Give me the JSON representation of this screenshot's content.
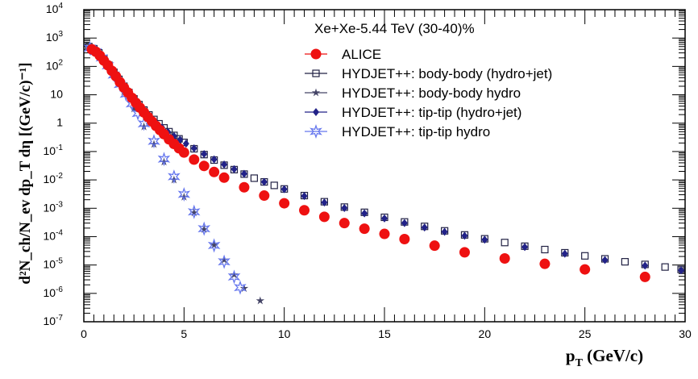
{
  "chart_data": {
    "type": "scatter",
    "title": "Xe+Xe-5.44 TeV (30-40)%",
    "xlabel": {
      "main": "p",
      "sub": "T",
      "rest": " (GeV/c)"
    },
    "ylabel": "d²N_ch/N_ev dp_T dη [(GeV/c)⁻¹]",
    "x_ticks": [
      "0",
      "5",
      "10",
      "15",
      "20",
      "25",
      "30"
    ],
    "y_ticks": [
      {
        "base": "10",
        "exp": "4"
      },
      {
        "base": "10",
        "exp": "3"
      },
      {
        "base": "10",
        "exp": "2"
      },
      {
        "base": "10",
        "exp": ""
      },
      {
        "base": "1",
        "exp": ""
      },
      {
        "base": "10",
        "exp": "-1"
      },
      {
        "base": "10",
        "exp": "-2"
      },
      {
        "base": "10",
        "exp": "-3"
      },
      {
        "base": "10",
        "exp": "-4"
      },
      {
        "base": "10",
        "exp": "-5"
      },
      {
        "base": "10",
        "exp": "-6"
      },
      {
        "base": "10",
        "exp": "-7"
      }
    ],
    "xlim": [
      0,
      30
    ],
    "ylim_log10": [
      -7,
      4
    ],
    "log_y": true,
    "legend_position": "top-right",
    "series": [
      {
        "name": "ALICE",
        "marker": "filled-circle",
        "color": "#ee1111",
        "points": [
          [
            0.4,
            400
          ],
          [
            0.6,
            330
          ],
          [
            0.8,
            240
          ],
          [
            1.0,
            160
          ],
          [
            1.2,
            110
          ],
          [
            1.4,
            70
          ],
          [
            1.6,
            45
          ],
          [
            1.8,
            28
          ],
          [
            2.0,
            18
          ],
          [
            2.2,
            12
          ],
          [
            2.4,
            7.8
          ],
          [
            2.6,
            5.2
          ],
          [
            2.8,
            3.5
          ],
          [
            3.0,
            2.4
          ],
          [
            3.2,
            1.65
          ],
          [
            3.4,
            1.15
          ],
          [
            3.6,
            0.8
          ],
          [
            3.8,
            0.57
          ],
          [
            4.0,
            0.41
          ],
          [
            4.25,
            0.27
          ],
          [
            4.5,
            0.185
          ],
          [
            4.75,
            0.13
          ],
          [
            5.0,
            0.092
          ],
          [
            5.5,
            0.052
          ],
          [
            6.0,
            0.031
          ],
          [
            6.5,
            0.019
          ],
          [
            7.0,
            0.012
          ],
          [
            8.0,
            0.0055
          ],
          [
            9.0,
            0.0028
          ],
          [
            10.0,
            0.0015
          ],
          [
            11.0,
            0.00085
          ],
          [
            12.0,
            0.0005
          ],
          [
            13.0,
            0.0003
          ],
          [
            14.0,
            0.00019
          ],
          [
            15.0,
            0.000125
          ],
          [
            16.0,
            8.2e-05
          ],
          [
            17.5,
            4.8e-05
          ],
          [
            19.0,
            2.8e-05
          ],
          [
            21.0,
            1.7e-05
          ],
          [
            23.0,
            1.1e-05
          ],
          [
            25.0,
            7e-06
          ],
          [
            28.0,
            3.8e-06
          ]
        ]
      },
      {
        "name": "HYDJET++: body-body (hydro+jet)",
        "marker": "open-square",
        "color": "#222244",
        "points": [
          [
            0.25,
            500
          ],
          [
            0.5,
            420
          ],
          [
            0.75,
            300
          ],
          [
            1.0,
            190
          ],
          [
            1.25,
            110
          ],
          [
            1.5,
            62
          ],
          [
            1.75,
            35
          ],
          [
            2.0,
            20
          ],
          [
            2.25,
            12
          ],
          [
            2.5,
            7.2
          ],
          [
            2.75,
            4.5
          ],
          [
            3.0,
            2.9
          ],
          [
            3.25,
            1.95
          ],
          [
            3.5,
            1.35
          ],
          [
            3.75,
            0.95
          ],
          [
            4.0,
            0.68
          ],
          [
            4.25,
            0.5
          ],
          [
            4.5,
            0.37
          ],
          [
            4.75,
            0.28
          ],
          [
            5.0,
            0.21
          ],
          [
            5.5,
            0.125
          ],
          [
            6.0,
            0.078
          ],
          [
            6.5,
            0.05
          ],
          [
            7.0,
            0.033
          ],
          [
            7.5,
            0.023
          ],
          [
            8.0,
            0.016
          ],
          [
            8.5,
            0.0115
          ],
          [
            9.0,
            0.0085
          ],
          [
            9.5,
            0.0064
          ],
          [
            10.0,
            0.0048
          ],
          [
            11.0,
            0.0028
          ],
          [
            12.0,
            0.0017
          ],
          [
            13.0,
            0.0011
          ],
          [
            14.0,
            0.00072
          ],
          [
            15.0,
            0.00048
          ],
          [
            16.0,
            0.00033
          ],
          [
            17.0,
            0.00023
          ],
          [
            18.0,
            0.00016
          ],
          [
            19.0,
            0.000115
          ],
          [
            20.0,
            8.4e-05
          ],
          [
            21.0,
            6.2e-05
          ],
          [
            22.0,
            4.6e-05
          ],
          [
            23.0,
            3.5e-05
          ],
          [
            24.0,
            2.7e-05
          ],
          [
            25.0,
            2.1e-05
          ],
          [
            26.0,
            1.65e-05
          ],
          [
            27.0,
            1.3e-05
          ],
          [
            28.0,
            1.05e-05
          ],
          [
            29.0,
            8.5e-06
          ],
          [
            29.8,
            7e-06
          ]
        ]
      },
      {
        "name": "HYDJET++: body-body hydro",
        "marker": "star",
        "color": "#444466",
        "points": [
          [
            0.25,
            480
          ],
          [
            0.5,
            400
          ],
          [
            0.75,
            280
          ],
          [
            1.0,
            170
          ],
          [
            1.25,
            95
          ],
          [
            1.5,
            50
          ],
          [
            1.75,
            26
          ],
          [
            2.0,
            13
          ],
          [
            2.5,
            3.2
          ],
          [
            3.0,
            0.75
          ],
          [
            3.5,
            0.18
          ],
          [
            4.0,
            0.043
          ],
          [
            4.5,
            0.01
          ],
          [
            5.0,
            0.0025
          ],
          [
            5.5,
            0.0007
          ],
          [
            6.0,
            0.00018
          ],
          [
            6.5,
            5e-05
          ],
          [
            7.0,
            1.5e-05
          ],
          [
            7.5,
            4.5e-06
          ],
          [
            8.0,
            1.5e-06
          ],
          [
            8.8,
            5.5e-07
          ]
        ]
      },
      {
        "name": "HYDJET++: tip-tip (hydro+jet)",
        "marker": "filled-diamond",
        "color": "#222288",
        "points": [
          [
            0.3,
            460
          ],
          [
            0.6,
            350
          ],
          [
            0.9,
            220
          ],
          [
            1.2,
            120
          ],
          [
            1.5,
            60
          ],
          [
            1.8,
            30
          ],
          [
            2.1,
            15
          ],
          [
            2.4,
            8.0
          ],
          [
            2.7,
            4.5
          ],
          [
            3.0,
            2.6
          ],
          [
            3.3,
            1.6
          ],
          [
            3.6,
            1.05
          ],
          [
            3.9,
            0.7
          ],
          [
            4.2,
            0.49
          ],
          [
            4.5,
            0.35
          ],
          [
            4.8,
            0.26
          ],
          [
            5.1,
            0.19
          ],
          [
            5.5,
            0.13
          ],
          [
            6.0,
            0.082
          ],
          [
            6.5,
            0.053
          ],
          [
            7.0,
            0.035
          ],
          [
            7.5,
            0.024
          ],
          [
            8.0,
            0.0165
          ],
          [
            9.0,
            0.0085
          ],
          [
            10.0,
            0.0047
          ],
          [
            11.0,
            0.0027
          ],
          [
            12.0,
            0.0016
          ],
          [
            13.0,
            0.00102
          ],
          [
            14.0,
            0.00066
          ],
          [
            15.0,
            0.00044
          ],
          [
            16.0,
            0.0003
          ],
          [
            17.0,
            0.00021
          ],
          [
            18.0,
            0.000148
          ],
          [
            19.0,
            0.000107
          ],
          [
            20.0,
            7.8e-05
          ],
          [
            22.0,
            4.3e-05
          ],
          [
            24.0,
            2.5e-05
          ],
          [
            26.0,
            1.5e-05
          ],
          [
            28.0,
            9.5e-06
          ],
          [
            29.8,
            6.5e-06
          ]
        ]
      },
      {
        "name": "HYDJET++: tip-tip hydro",
        "marker": "open-star",
        "color": "#6677ee",
        "points": [
          [
            0.3,
            440
          ],
          [
            0.6,
            330
          ],
          [
            0.9,
            200
          ],
          [
            1.2,
            105
          ],
          [
            1.5,
            50
          ],
          [
            1.8,
            23
          ],
          [
            2.1,
            10.5
          ],
          [
            2.4,
            4.8
          ],
          [
            2.7,
            2.2
          ],
          [
            3.0,
            0.95
          ],
          [
            3.5,
            0.23
          ],
          [
            4.0,
            0.054
          ],
          [
            4.5,
            0.013
          ],
          [
            5.0,
            0.0031
          ],
          [
            5.5,
            0.00075
          ],
          [
            6.0,
            0.00019
          ],
          [
            6.5,
            4.9e-05
          ],
          [
            7.0,
            1.3e-05
          ],
          [
            7.5,
            3.8e-06
          ],
          [
            7.8,
            1.6e-06
          ]
        ]
      }
    ]
  }
}
